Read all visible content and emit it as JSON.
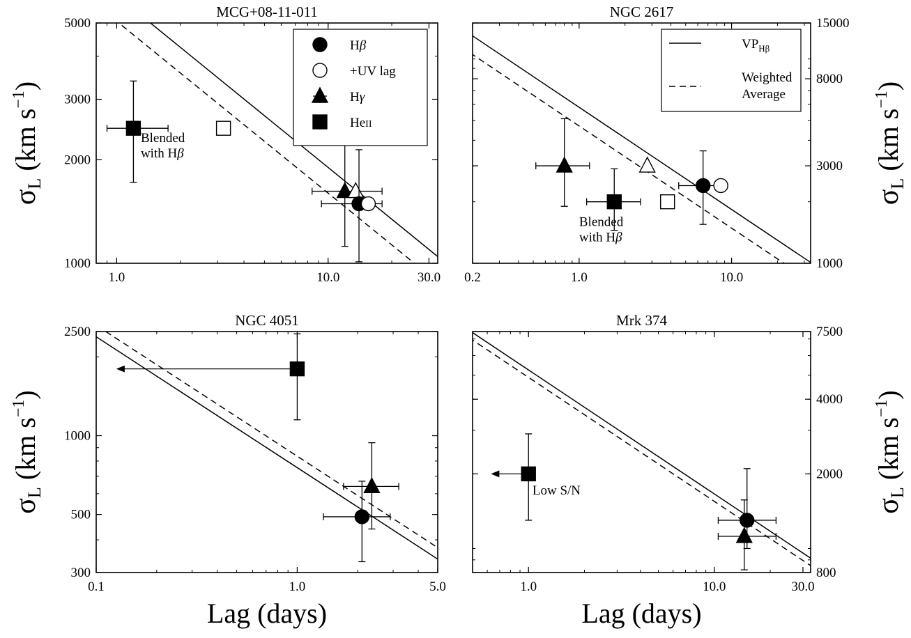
{
  "figure": {
    "xlabel": "Lag (days)",
    "ylabel_sym": "σ",
    "ylabel_sub": "L",
    "ylabel_unit": "(km s",
    "ylabel_exp": "−1",
    "ylabel_close": ")"
  },
  "legend_markers": {
    "title": "",
    "entries": [
      {
        "label_main": "H",
        "label_greek": "β",
        "marker": "circle",
        "fill": "#000000"
      },
      {
        "label_main": "+UV lag",
        "label_greek": "",
        "marker": "circle",
        "fill": "#ffffff"
      },
      {
        "label_main": "H",
        "label_greek": "γ",
        "marker": "triangle",
        "fill": "#000000"
      },
      {
        "label_main": "He",
        "label_greek": "II",
        "marker": "square",
        "fill": "#000000"
      }
    ]
  },
  "legend_lines": {
    "entries": [
      {
        "style": "solid",
        "line1_main": "VP",
        "line1_sub": "Hβ",
        "line2": ""
      },
      {
        "style": "dashed",
        "line1_main": "Weighted",
        "line1_sub": "",
        "line2": "Average"
      }
    ]
  },
  "chart_data": [
    {
      "type": "scatter",
      "title": "MCG+08-11-011",
      "xscale": "log",
      "yscale": "log",
      "xlim": [
        0.8,
        33
      ],
      "ylim": [
        1000,
        5000
      ],
      "yaxis_side": "left",
      "xticks": [
        1.0,
        10.0,
        30.0
      ],
      "xtick_labels": [
        "1.0",
        "10.0",
        "30.0"
      ],
      "yticks": [
        1000,
        2000,
        3000,
        5000
      ],
      "ytick_labels": [
        "1000",
        "2000",
        "3000",
        "5000"
      ],
      "show_xlabel": false,
      "legend": "markers",
      "lines": [
        {
          "style": "solid",
          "slope": -0.5,
          "x0": 10,
          "y0": 1900
        },
        {
          "style": "dashed",
          "slope": -0.5,
          "x0": 10,
          "y0": 1600
        }
      ],
      "points": [
        {
          "marker": "square",
          "fill": "#000000",
          "x": 1.2,
          "y": 2470,
          "xerr": [
            0.3,
            0.55
          ],
          "yerr": [
            750,
            920
          ]
        },
        {
          "marker": "square",
          "fill": "#ffffff",
          "x": 3.2,
          "y": 2470
        },
        {
          "marker": "triangle",
          "fill": "#000000",
          "x": 12.0,
          "y": 1620,
          "xerr": [
            3.6,
            6.0
          ],
          "yerr": [
            500,
            800
          ]
        },
        {
          "marker": "triangle",
          "fill": "#ffffff",
          "x": 13.5,
          "y": 1620
        },
        {
          "marker": "circle",
          "fill": "#000000",
          "x": 14.0,
          "y": 1490,
          "xerr": [
            4.7,
            4.0
          ],
          "yerr": [
            480,
            650
          ]
        },
        {
          "marker": "circle",
          "fill": "#ffffff",
          "x": 15.5,
          "y": 1490
        }
      ],
      "annotations": [
        {
          "lines": [
            "Blended",
            "with H"
          ],
          "greek_suffix": "β",
          "x": 1.3,
          "y": 2250
        }
      ]
    },
    {
      "type": "scatter",
      "title": "NGC 2617",
      "xscale": "log",
      "yscale": "log",
      "xlim": [
        0.2,
        33
      ],
      "ylim": [
        1000,
        15000
      ],
      "yaxis_side": "right",
      "xticks": [
        0.2,
        1.0,
        10.0
      ],
      "xtick_labels": [
        "0.2",
        "1.0",
        "10.0"
      ],
      "yticks": [
        1000,
        3000,
        8000,
        15000
      ],
      "ytick_labels": [
        "1000",
        "3000",
        "8000",
        "15000"
      ],
      "show_xlabel": false,
      "legend": "lines",
      "lines": [
        {
          "style": "solid",
          "slope": -0.5,
          "x0": 1,
          "y0": 5800
        },
        {
          "style": "dashed",
          "slope": -0.5,
          "x0": 1,
          "y0": 4700
        }
      ],
      "points": [
        {
          "marker": "triangle",
          "fill": "#000000",
          "x": 0.8,
          "y": 3000,
          "xerr": [
            0.28,
            0.37
          ],
          "yerr": [
            1100,
            2100
          ]
        },
        {
          "marker": "triangle",
          "fill": "#ffffff",
          "x": 2.8,
          "y": 3000
        },
        {
          "marker": "square",
          "fill": "#000000",
          "x": 1.7,
          "y": 2000,
          "xerr": [
            0.58,
            0.83
          ],
          "yerr": [
            550,
            900
          ]
        },
        {
          "marker": "square",
          "fill": "#ffffff",
          "x": 3.8,
          "y": 2000
        },
        {
          "marker": "circle",
          "fill": "#000000",
          "x": 6.5,
          "y": 2400,
          "xerr": [
            2.0,
            2.2
          ],
          "yerr": [
            850,
            1150
          ]
        },
        {
          "marker": "circle",
          "fill": "#ffffff",
          "x": 8.5,
          "y": 2400
        }
      ],
      "annotations": [
        {
          "lines": [
            "Blended",
            "with H"
          ],
          "greek_suffix": "β",
          "x": 1.0,
          "y": 1520
        }
      ]
    },
    {
      "type": "scatter",
      "title": "NGC 4051",
      "xscale": "log",
      "yscale": "log",
      "xlim": [
        0.1,
        5.0
      ],
      "ylim": [
        300,
        2500
      ],
      "yaxis_side": "left",
      "xticks": [
        0.1,
        1.0,
        5.0
      ],
      "xtick_labels": [
        "0.1",
        "1.0",
        "5.0"
      ],
      "yticks": [
        300,
        500,
        1000,
        2500
      ],
      "ytick_labels": [
        "300",
        "500",
        "1000",
        "2500"
      ],
      "show_xlabel": true,
      "legend": "none",
      "lines": [
        {
          "style": "solid",
          "slope": -0.5,
          "x0": 1,
          "y0": 755
        },
        {
          "style": "dashed",
          "slope": -0.5,
          "x0": 1,
          "y0": 835
        }
      ],
      "points": [
        {
          "marker": "square",
          "fill": "#000000",
          "x": 1.0,
          "y": 1800,
          "yerr": [
            650,
            650
          ],
          "upper_limit_x": 0.13
        },
        {
          "marker": "triangle",
          "fill": "#000000",
          "x": 2.35,
          "y": 640,
          "xerr": [
            0.65,
            0.85
          ],
          "yerr": [
            200,
            300
          ]
        },
        {
          "marker": "circle",
          "fill": "#000000",
          "x": 2.1,
          "y": 490,
          "xerr": [
            0.75,
            0.8
          ],
          "yerr": [
            160,
            180
          ]
        }
      ],
      "annotations": []
    },
    {
      "type": "scatter",
      "title": "Mrk 374",
      "xscale": "log",
      "yscale": "log",
      "xlim": [
        0.5,
        33
      ],
      "ylim": [
        800,
        7500
      ],
      "yaxis_side": "right",
      "xticks": [
        1.0,
        10.0,
        30.0
      ],
      "xtick_labels": [
        "1.0",
        "10.0",
        "30.0"
      ],
      "yticks": [
        800,
        2000,
        4000,
        7500
      ],
      "ytick_labels": [
        "800",
        "2000",
        "4000",
        "7500"
      ],
      "show_xlabel": true,
      "legend": "none",
      "lines": [
        {
          "style": "solid",
          "slope": -0.5,
          "x0": 1,
          "y0": 5250
        },
        {
          "style": "dashed",
          "slope": -0.5,
          "x0": 1,
          "y0": 4900
        }
      ],
      "points": [
        {
          "marker": "square",
          "fill": "#000000",
          "x": 1.0,
          "y": 2000,
          "yerr": [
            700,
            900
          ],
          "upper_limit_x": 0.65
        },
        {
          "marker": "triangle",
          "fill": "#000000",
          "x": 14.5,
          "y": 1120,
          "xerr": [
            4.0,
            7.0
          ],
          "yerr": [
            300,
            450
          ]
        },
        {
          "marker": "circle",
          "fill": "#000000",
          "x": 15.0,
          "y": 1300,
          "xerr": [
            4.5,
            6.5
          ],
          "yerr": [
            300,
            800
          ]
        }
      ],
      "annotations": [
        {
          "lines": [
            "Low S/N"
          ],
          "greek_suffix": "",
          "x": 1.05,
          "y": 1650
        }
      ]
    }
  ]
}
